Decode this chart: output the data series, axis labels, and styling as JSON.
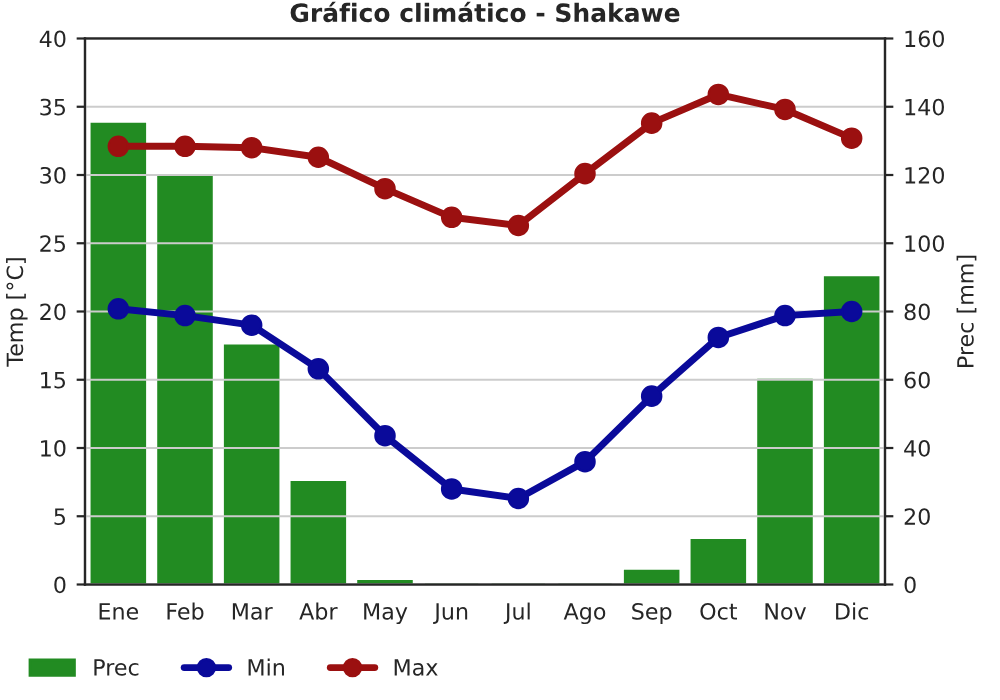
{
  "chart_data": {
    "type": "line",
    "title": "Gráfico climático - Shakawe",
    "ylabel": "Temp [°C]",
    "y2label": "Prec [mm]",
    "categories": [
      "Ene",
      "Feb",
      "Mar",
      "Abr",
      "May",
      "Jun",
      "Jul",
      "Ago",
      "Sep",
      "Oct",
      "Nov",
      "Dic"
    ],
    "series": [
      {
        "name": "Prec",
        "type": "bar",
        "axis": "y2",
        "color": "#228b22",
        "values": [
          135,
          120,
          70,
          30,
          1,
          0,
          0,
          0,
          4,
          13,
          60,
          90
        ]
      },
      {
        "name": "Min",
        "color": "#0a0a9a",
        "values": [
          20.2,
          19.7,
          19.0,
          15.8,
          10.9,
          7.0,
          6.3,
          9.0,
          13.8,
          18.1,
          19.7,
          20.0
        ]
      },
      {
        "name": "Max",
        "color": "#9b1010",
        "values": [
          32.1,
          32.1,
          32.0,
          31.3,
          29.0,
          26.9,
          26.3,
          30.1,
          33.8,
          35.9,
          34.8,
          32.7
        ]
      }
    ],
    "ylim": [
      0,
      40
    ],
    "yticks": [
      0,
      5,
      10,
      15,
      20,
      25,
      30,
      35,
      40
    ],
    "y2lim": [
      0,
      160
    ],
    "y2ticks": [
      0,
      20,
      40,
      60,
      80,
      100,
      120,
      140,
      160
    ],
    "grid": "y",
    "legend": "bottom",
    "marker": "circle",
    "line_style": "solid"
  }
}
